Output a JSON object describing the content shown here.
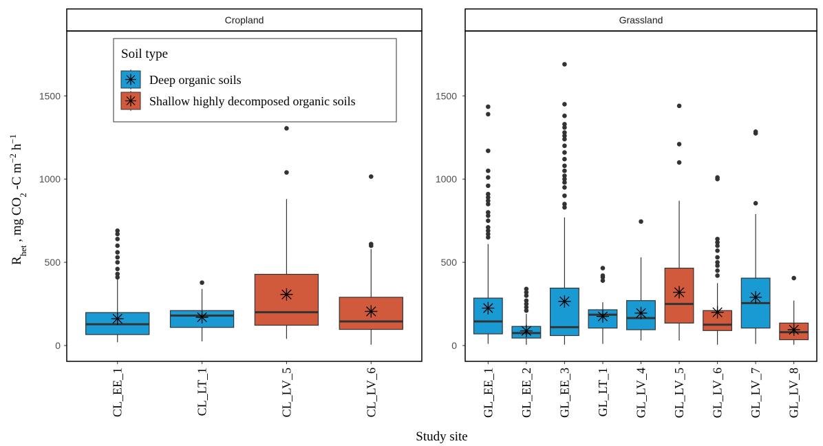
{
  "ylabel_parts": [
    {
      "text": "R"
    },
    {
      "text": "het",
      "shift": "sub"
    },
    {
      "text": " , mg CO"
    },
    {
      "text": "2",
      "shift": "sub"
    },
    {
      "text": " -C m"
    },
    {
      "text": "−2",
      "shift": "super"
    },
    {
      "text": " h"
    },
    {
      "text": "−1",
      "shift": "super"
    }
  ],
  "xlabel": "Study site",
  "chart_data": [
    {
      "type": "box",
      "title": "Cropland",
      "legend": {
        "title": "Soil type",
        "entries": [
          {
            "name": "Deep organic soils",
            "color": "#1a9ad3"
          },
          {
            "name": "Shallow highly decomposed organic soils",
            "color": "#d1593c"
          }
        ]
      },
      "ylim": [
        -95,
        1890
      ],
      "yticks": [
        0,
        500,
        1000,
        1500
      ],
      "categories": [
        "CL_EE_1",
        "CL_LT_1",
        "CL_LV_5",
        "CL_LV_6"
      ],
      "boxes": [
        {
          "series": 0,
          "low": 20,
          "q1": 66,
          "median": 128,
          "q3": 198,
          "high": 400,
          "mean": 161,
          "outliers": [
            410,
            430,
            460,
            500,
            530,
            560,
            600,
            640,
            670,
            690
          ]
        },
        {
          "series": 0,
          "low": 25,
          "q1": 109,
          "median": 180,
          "q3": 210,
          "high": 340,
          "mean": 170,
          "outliers": [
            378
          ]
        },
        {
          "series": 1,
          "low": 40,
          "q1": 122,
          "median": 200,
          "q3": 428,
          "high": 880,
          "mean": 307,
          "outliers": [
            1040,
            1305
          ]
        },
        {
          "series": 1,
          "low": 5,
          "q1": 97,
          "median": 145,
          "q3": 290,
          "high": 580,
          "mean": 205,
          "outliers": [
            600,
            610,
            1015
          ]
        }
      ]
    },
    {
      "type": "box",
      "title": "Grassland",
      "ylim": [
        -95,
        1890
      ],
      "yticks": [
        0,
        500,
        1000,
        1500
      ],
      "categories": [
        "GL_EE_1",
        "GL_EE_2",
        "GL_EE_3",
        "GL_LT_1",
        "GL_LV_4",
        "GL_LV_5",
        "GL_LV_6",
        "GL_LV_7",
        "GL_LV_8"
      ],
      "boxes": [
        {
          "series": 0,
          "low": 10,
          "q1": 70,
          "median": 145,
          "q3": 285,
          "high": 610,
          "mean": 225,
          "outliers": [
            650,
            670,
            690,
            710,
            750,
            780,
            800,
            850,
            870,
            890,
            910,
            960,
            1010,
            1050,
            1170,
            1390,
            1435
          ]
        },
        {
          "series": 0,
          "low": 5,
          "q1": 45,
          "median": 75,
          "q3": 115,
          "high": 190,
          "mean": 88,
          "outliers": [
            210,
            230,
            250,
            270,
            300,
            320,
            340
          ]
        },
        {
          "series": 0,
          "low": 5,
          "q1": 60,
          "median": 110,
          "q3": 345,
          "high": 770,
          "mean": 265,
          "outliers": [
            830,
            850,
            900,
            950,
            980,
            1000,
            1020,
            1050,
            1080,
            1120,
            1160,
            1200,
            1240,
            1260,
            1280,
            1310,
            1330,
            1380,
            1450,
            1690
          ]
        },
        {
          "series": 0,
          "low": 10,
          "q1": 105,
          "median": 185,
          "q3": 215,
          "high": 260,
          "mean": 175,
          "outliers": [
            390,
            410,
            420,
            465
          ]
        },
        {
          "series": 0,
          "low": 30,
          "q1": 95,
          "median": 165,
          "q3": 270,
          "high": 530,
          "mean": 195,
          "outliers": [
            745
          ]
        },
        {
          "series": 1,
          "low": 30,
          "q1": 135,
          "median": 250,
          "q3": 465,
          "high": 870,
          "mean": 320,
          "outliers": [
            1100,
            1210,
            1440
          ]
        },
        {
          "series": 1,
          "low": 5,
          "q1": 90,
          "median": 125,
          "q3": 210,
          "high": 375,
          "mean": 200,
          "outliers": [
            420,
            450,
            480,
            500,
            530,
            570,
            600,
            620,
            640,
            1000,
            1010
          ]
        },
        {
          "series": 0,
          "low": 10,
          "q1": 105,
          "median": 255,
          "q3": 405,
          "high": 790,
          "mean": 290,
          "outliers": [
            855,
            1275,
            1285
          ]
        },
        {
          "series": 1,
          "low": 5,
          "q1": 35,
          "median": 80,
          "q3": 135,
          "high": 270,
          "mean": 95,
          "outliers": [
            405
          ]
        }
      ]
    }
  ]
}
